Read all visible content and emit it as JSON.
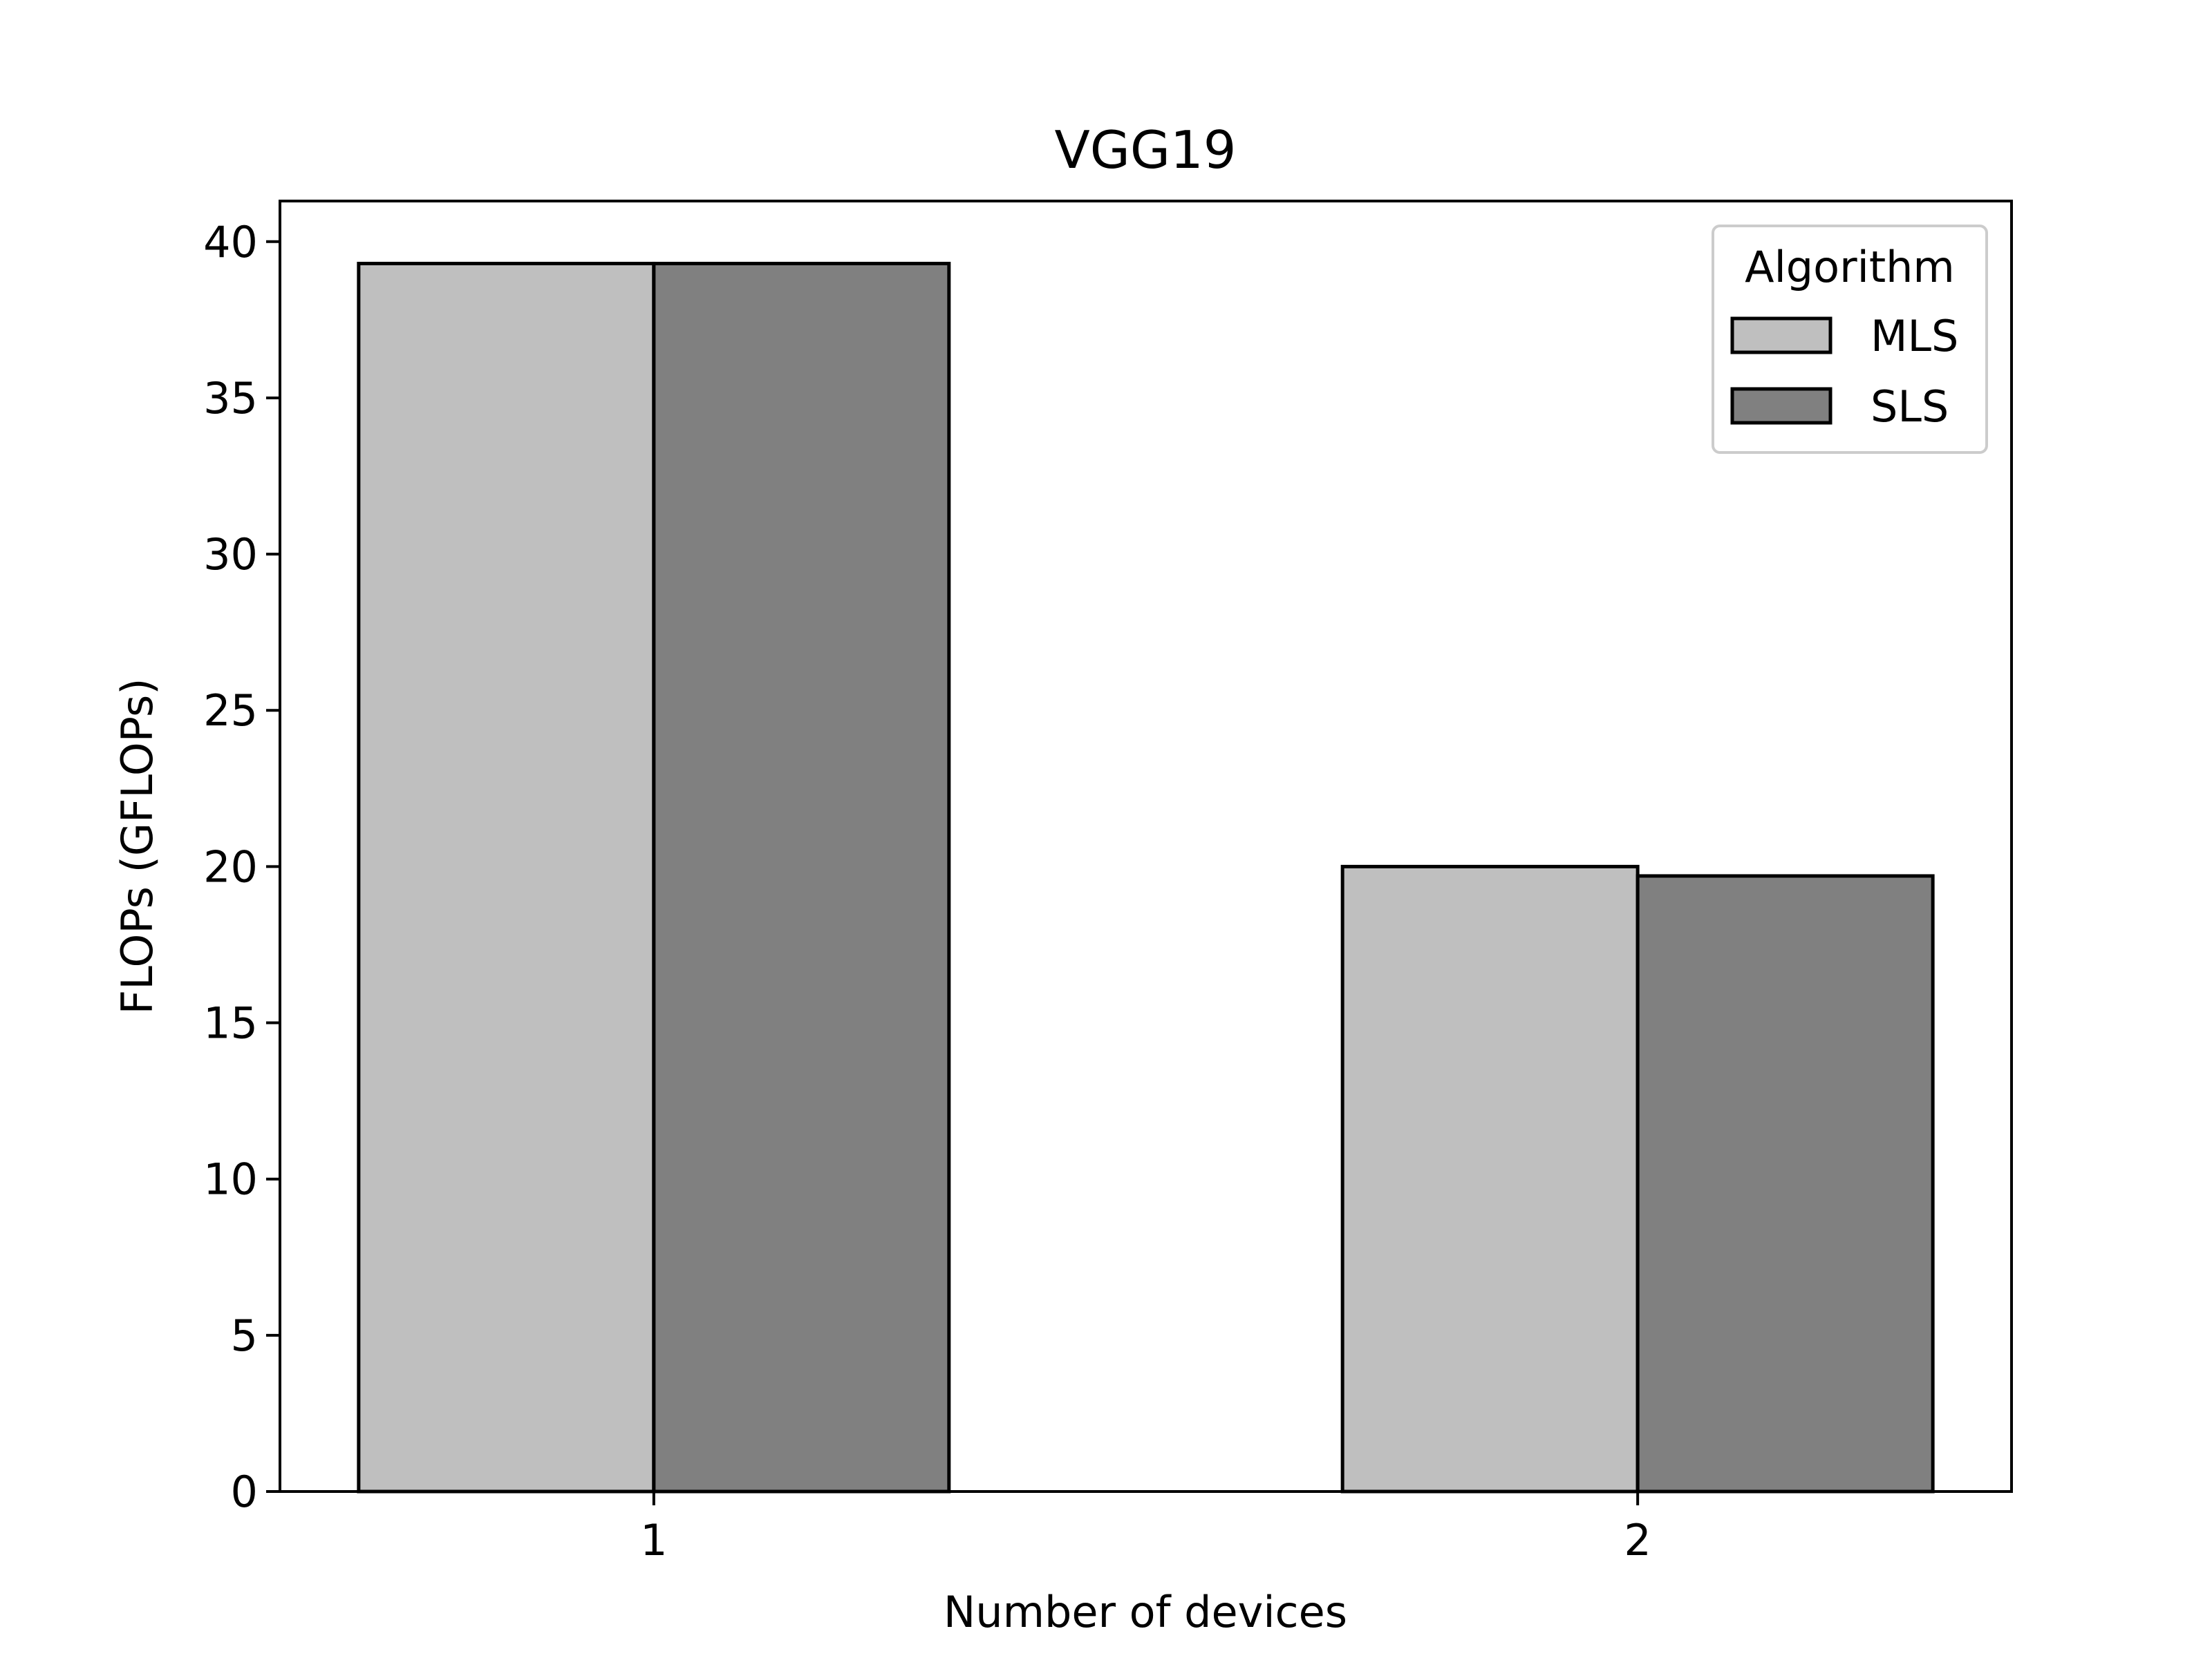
{
  "colors": {
    "mls": "#bfbfbf",
    "sls": "#808080",
    "edge": "#000000",
    "background": "#ffffff"
  },
  "chart_data": {
    "type": "bar",
    "title": "VGG19",
    "xlabel": "Number of devices",
    "ylabel": "FLOPs (GFLOPs)",
    "categories": [
      "1",
      "2"
    ],
    "series": [
      {
        "name": "MLS",
        "values": [
          39.3,
          20.0
        ],
        "color": "#bfbfbf"
      },
      {
        "name": "SLS",
        "values": [
          39.3,
          19.7
        ],
        "color": "#808080"
      }
    ],
    "ylim": [
      0,
      41.3
    ],
    "yticks": [
      0,
      5,
      10,
      15,
      20,
      25,
      30,
      35,
      40
    ],
    "grid": false,
    "legend": {
      "title": "Algorithm",
      "placement": "top-right",
      "entries": [
        "MLS",
        "SLS"
      ]
    }
  }
}
